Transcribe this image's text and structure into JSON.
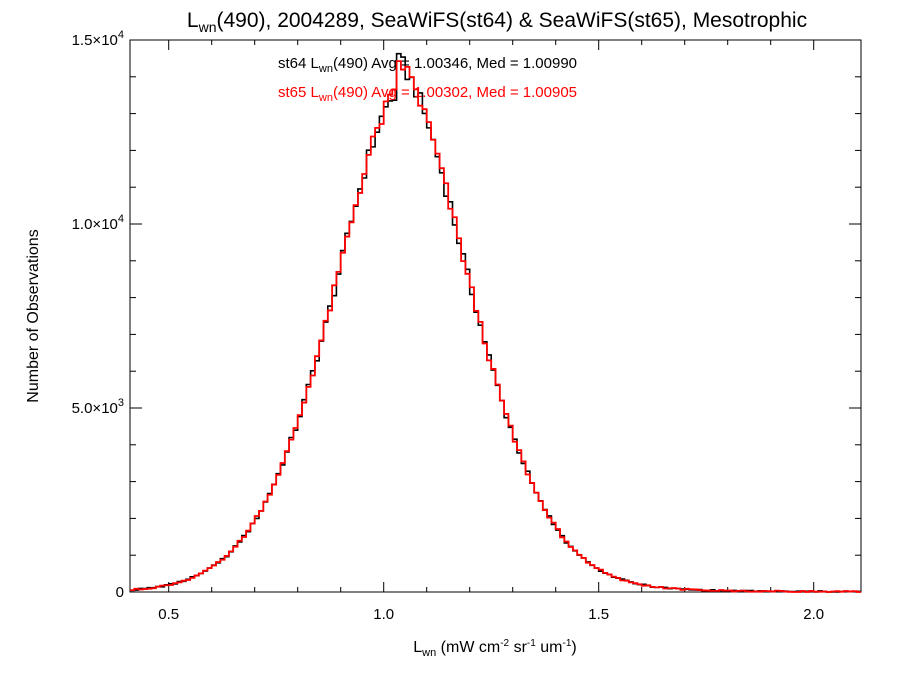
{
  "chart_data": {
    "type": "histogram",
    "title_parts": {
      "pre": "L",
      "sub": "wn",
      "post": "(490), 2004289, SeaWiFS(st64) & SeaWiFS(st65), Mesotrophic"
    },
    "xlabel_parts": {
      "pre": "L",
      "sub": "wn",
      "mid1": " (mW cm",
      "sup1": "-2",
      "mid2": " sr",
      "sup2": "-1",
      "mid3": " um",
      "sup3": "-1",
      "post": ")"
    },
    "ylabel": "Number of Observations",
    "xlim": [
      0.41,
      2.11
    ],
    "ylim": [
      0,
      15000
    ],
    "x_ticks": [
      {
        "value": 0.5,
        "label": "0.5"
      },
      {
        "value": 1.0,
        "label": "1.0"
      },
      {
        "value": 1.5,
        "label": "1.5"
      },
      {
        "value": 2.0,
        "label": "2.0"
      }
    ],
    "y_ticks": [
      {
        "value": 0,
        "mant": "0",
        "exp": ""
      },
      {
        "value": 5000,
        "mant": "5.0×10",
        "exp": "3"
      },
      {
        "value": 10000,
        "mant": "1.0×10",
        "exp": "4"
      },
      {
        "value": 15000,
        "mant": "1.5×10",
        "exp": "4"
      }
    ],
    "bin_width": 0.01,
    "peak_x": 1.03,
    "peak_y": 13500,
    "series": [
      {
        "name": "st64",
        "color": "#000000",
        "label_parts": {
          "pre": "st64 L",
          "sub": "wn",
          "post": "(490) Avg = 1.00346, Med = 1.00990"
        },
        "avg": 1.00346,
        "median": 1.0099
      },
      {
        "name": "st65",
        "color": "#ff0000",
        "label_parts": {
          "pre": "st65 L",
          "sub": "wn",
          "post": "(490) Avg = 1.00302, Med = 1.00905"
        },
        "avg": 1.00302,
        "median": 1.00905
      }
    ],
    "grid": false,
    "legend_position": "top-center"
  }
}
